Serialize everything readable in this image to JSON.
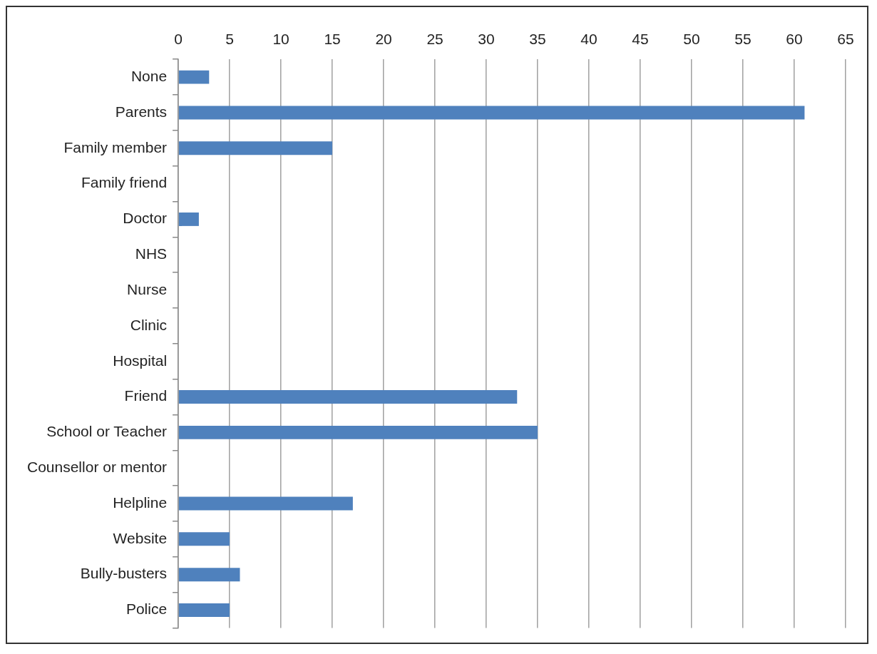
{
  "chart_data": {
    "type": "bar",
    "orientation": "horizontal",
    "categories": [
      "None",
      "Parents",
      "Family member",
      "Family friend",
      "Doctor",
      "NHS",
      "Nurse",
      "Clinic",
      "Hospital",
      "Friend",
      "School or Teacher",
      "Counsellor or mentor",
      "Helpline",
      "Website",
      "Bully-busters",
      "Police"
    ],
    "values": [
      3,
      61,
      15,
      0,
      2,
      0,
      0,
      0,
      0,
      33,
      35,
      0,
      17,
      5,
      6,
      5
    ],
    "color": "#4f81bd",
    "xlim": [
      0,
      65
    ],
    "xticks": [
      0,
      5,
      10,
      15,
      20,
      25,
      30,
      35,
      40,
      45,
      50,
      55,
      60,
      65
    ],
    "grid": "x",
    "legend": false
  }
}
